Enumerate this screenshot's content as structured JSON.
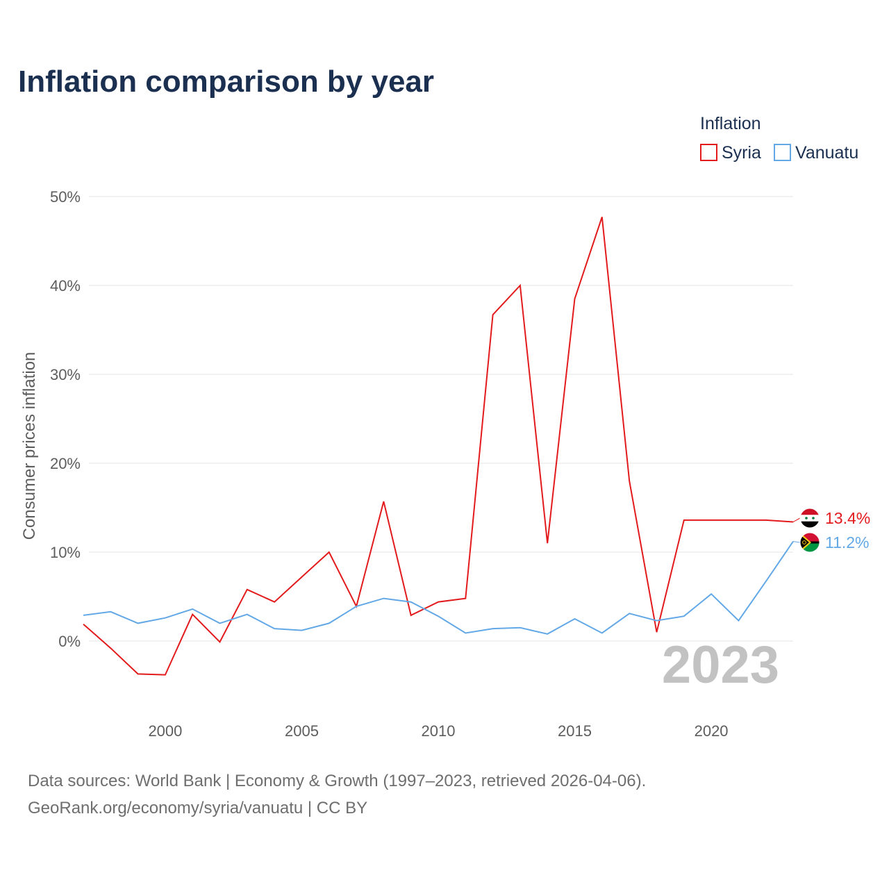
{
  "title": "Inflation comparison by year",
  "legend": {
    "title": "Inflation",
    "items": [
      {
        "name": "Syria",
        "color": "#e31a1c"
      },
      {
        "name": "Vanuatu",
        "color": "#63a8e6"
      }
    ]
  },
  "chart_data": {
    "type": "line",
    "ylabel": "Consumer prices inflation",
    "xlabel": "",
    "x": [
      1997,
      1998,
      1999,
      2000,
      2001,
      2002,
      2003,
      2004,
      2005,
      2006,
      2007,
      2008,
      2009,
      2010,
      2011,
      2012,
      2013,
      2014,
      2015,
      2016,
      2017,
      2018,
      2019,
      2020,
      2021,
      2022,
      2023
    ],
    "xlim": [
      1997,
      2023
    ],
    "xticks": [
      2000,
      2005,
      2010,
      2015,
      2020
    ],
    "ylim": [
      -7,
      52
    ],
    "yticks": [
      0,
      10,
      20,
      30,
      40,
      50
    ],
    "ytick_labels": [
      "0%",
      "10%",
      "20%",
      "30%",
      "40%",
      "50%"
    ],
    "series": [
      {
        "name": "Syria",
        "color": "#e31a1c",
        "values": [
          1.9,
          -0.8,
          -3.7,
          -3.8,
          3.0,
          -0.1,
          5.8,
          4.4,
          7.2,
          10.0,
          3.9,
          15.7,
          2.9,
          4.4,
          4.8,
          36.7,
          40.0,
          11.0,
          38.5,
          47.7,
          18.0,
          1.0,
          13.6,
          13.6,
          13.6,
          13.6,
          13.4
        ],
        "end_label": "13.4%"
      },
      {
        "name": "Vanuatu",
        "color": "#63a8e6",
        "values": [
          2.9,
          3.3,
          2.0,
          2.6,
          3.6,
          2.0,
          3.0,
          1.4,
          1.2,
          2.0,
          3.9,
          4.8,
          4.4,
          2.8,
          0.9,
          1.4,
          1.5,
          0.8,
          2.5,
          0.9,
          3.1,
          2.3,
          2.8,
          5.3,
          2.3,
          6.7,
          11.2
        ],
        "end_label": "11.2%"
      }
    ],
    "current_year": "2023"
  },
  "footer": {
    "line1": "Data sources: World Bank | Economy & Growth (1997–2023, retrieved 2026-04-06).",
    "line2": "GeoRank.org/economy/syria/vanuatu | CC BY"
  }
}
